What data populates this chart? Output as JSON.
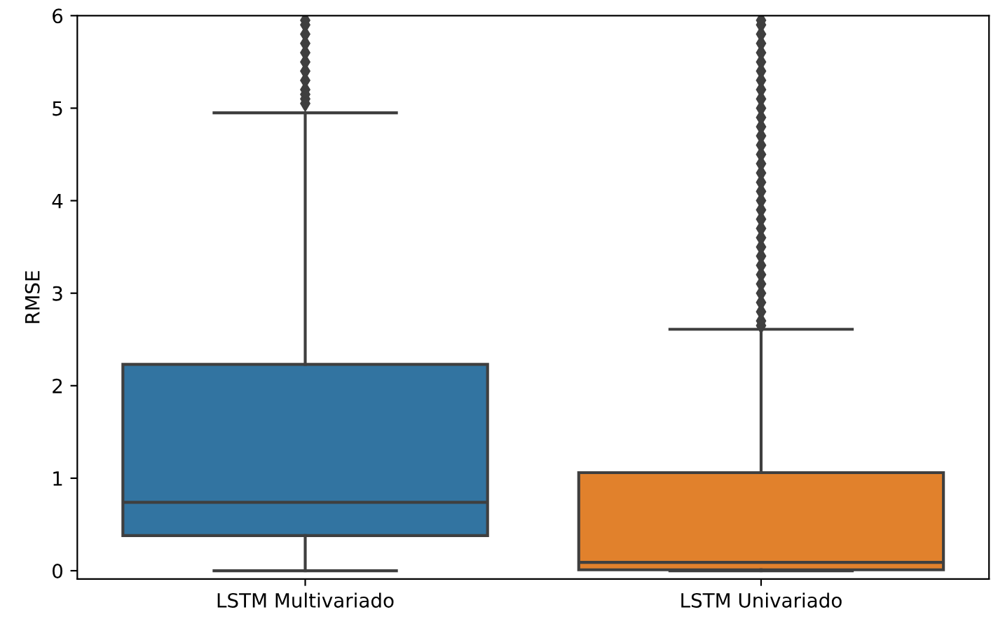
{
  "chart_data": {
    "type": "box",
    "ylabel": "RMSE",
    "categories": [
      "LSTM Multivariado",
      "LSTM Univariado"
    ],
    "colors": [
      "#3274a1",
      "#e1812c"
    ],
    "boxes": [
      {
        "low": 0.0,
        "q1": 0.38,
        "median": 0.74,
        "q3": 2.23,
        "high": 4.95,
        "outliers": [
          5.05,
          5.1,
          5.15,
          5.2,
          5.3,
          5.4,
          5.5,
          5.6,
          5.7,
          5.8,
          5.9,
          5.95
        ]
      },
      {
        "low": 0.0,
        "q1": 0.01,
        "median": 0.09,
        "q3": 1.06,
        "high": 2.61,
        "outliers": [
          2.65,
          2.7,
          2.8,
          2.9,
          3.0,
          3.1,
          3.2,
          3.3,
          3.4,
          3.5,
          3.6,
          3.7,
          3.8,
          3.9,
          4.0,
          4.1,
          4.2,
          4.3,
          4.4,
          4.5,
          4.6,
          4.7,
          4.8,
          4.9,
          5.0,
          5.1,
          5.2,
          5.3,
          5.4,
          5.5,
          5.6,
          5.7,
          5.8,
          5.9,
          5.95
        ]
      }
    ],
    "ylim": [
      -0.09,
      6
    ],
    "yticks": [
      0,
      1,
      2,
      3,
      4,
      5,
      6
    ],
    "grid": false,
    "legend": false
  }
}
